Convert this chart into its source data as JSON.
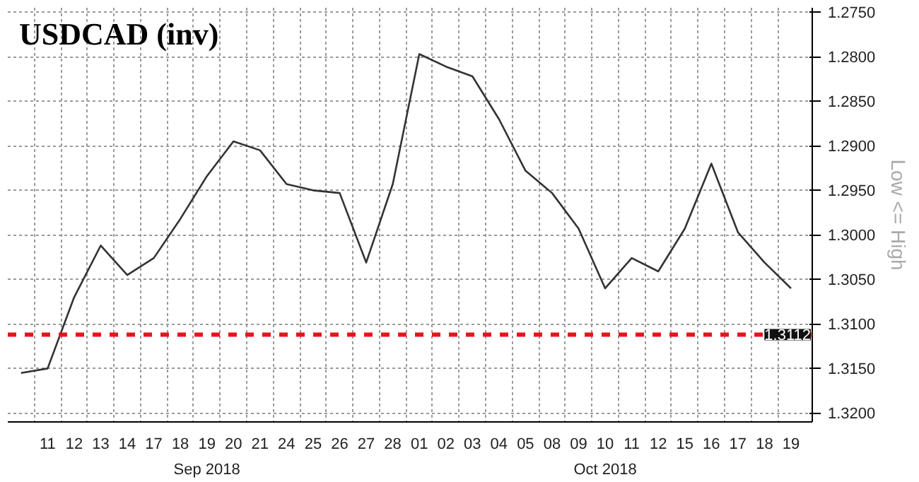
{
  "chart_data": {
    "type": "line",
    "title": "USDCAD (inv)",
    "categories": [
      null,
      "11",
      "12",
      "13",
      "14",
      "17",
      "18",
      "19",
      "20",
      "21",
      "24",
      "25",
      "26",
      "27",
      "28",
      "01",
      "02",
      "03",
      "04",
      "05",
      "08",
      "09",
      "10",
      "11",
      "12",
      "15",
      "16",
      "17",
      "18",
      "19"
    ],
    "series": [
      {
        "color": "#333333",
        "values": [
          1.3155,
          1.315,
          1.307,
          1.3012,
          1.3045,
          1.3026,
          1.2982,
          1.2934,
          1.2895,
          1.2905,
          1.2943,
          1.295,
          1.2953,
          1.3031,
          1.2943,
          1.2797,
          1.2811,
          1.2822,
          1.287,
          1.2928,
          1.2953,
          1.2993,
          1.306,
          1.3026,
          1.3041,
          1.2993,
          1.292,
          1.2997,
          1.3031,
          1.306
        ]
      }
    ],
    "ylim": [
      1.321,
      1.2745
    ],
    "yticks": [
      {
        "value": 1.275,
        "label": "1.2750"
      },
      {
        "value": 1.28,
        "label": "1.2800"
      },
      {
        "value": 1.285,
        "label": "1.2850"
      },
      {
        "value": 1.29,
        "label": "1.2900"
      },
      {
        "value": 1.295,
        "label": "1.2950"
      },
      {
        "value": 1.3,
        "label": "1.3000"
      },
      {
        "value": 1.305,
        "label": "1.3050"
      },
      {
        "value": 1.31,
        "label": "1.3100"
      },
      {
        "value": 1.315,
        "label": "1.3150"
      },
      {
        "value": 1.32,
        "label": "1.3200"
      }
    ],
    "ref_lines": [
      {
        "axis": "y",
        "value": 1.3112,
        "label": "1.3112",
        "color": "#e8141c",
        "line_style": "dashed"
      }
    ],
    "annotations": [
      "Sep 2018",
      "Oct 2018",
      "Low <= High"
    ],
    "grid": true,
    "marker": "none",
    "line_style": "solid"
  }
}
